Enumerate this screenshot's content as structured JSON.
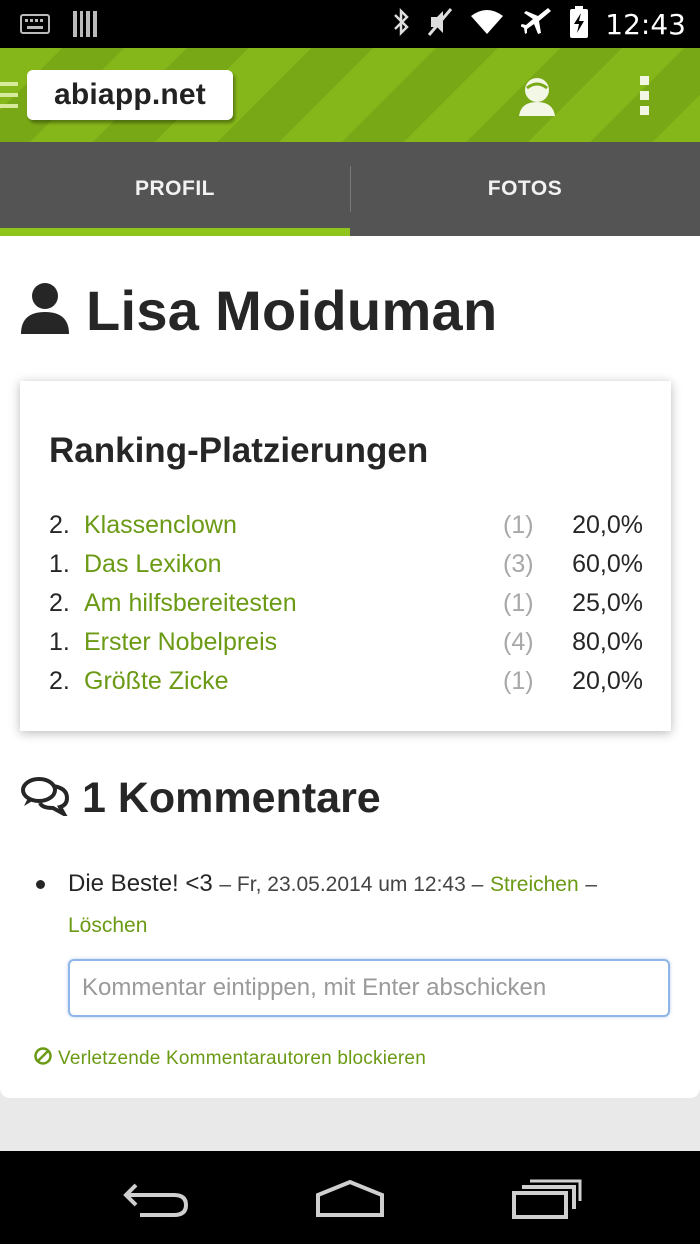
{
  "status_bar": {
    "time": "12:43",
    "left_icons": [
      "keyboard-icon",
      "barcode-icon"
    ],
    "right_icons": [
      "bluetooth-icon",
      "mute-icon",
      "wifi-icon",
      "airplane-icon",
      "battery-charging-icon"
    ]
  },
  "app_bar": {
    "logo": "abiapp.net",
    "icons": [
      "drawer-icon",
      "user-profile-icon",
      "overflow-menu-icon"
    ],
    "accent_color": "#86b71a"
  },
  "tabs": [
    {
      "label": "PROFIL",
      "active": true
    },
    {
      "label": "FOTOS",
      "active": false
    }
  ],
  "profile": {
    "name": "Lisa Moiduman"
  },
  "ranking": {
    "title": "Ranking-Platzierungen",
    "rows": [
      {
        "position": "2.",
        "title": "Klassenclown",
        "count": "(1)",
        "percent": "20,0%"
      },
      {
        "position": "1.",
        "title": "Das Lexikon",
        "count": "(3)",
        "percent": "60,0%"
      },
      {
        "position": "2.",
        "title": "Am hilfsbereitesten",
        "count": "(1)",
        "percent": "25,0%"
      },
      {
        "position": "1.",
        "title": "Erster Nobelpreis",
        "count": "(4)",
        "percent": "80,0%"
      },
      {
        "position": "2.",
        "title": "Größte Zicke",
        "count": "(1)",
        "percent": "20,0%"
      }
    ]
  },
  "comments": {
    "title": "1 Kommentare",
    "items": [
      {
        "text": "Die Beste! <3",
        "meta": "– Fr, 23.05.2014 um 12:43 –",
        "strike_label": "Streichen",
        "separator": "–",
        "delete_label": "Löschen"
      }
    ],
    "input_placeholder": "Kommentar eintippen, mit Enter abschicken",
    "block_label": "Verletzende Kommentarautoren blockieren"
  },
  "nav_bar": {
    "icons": [
      "back-icon",
      "home-icon",
      "recent-apps-icon"
    ]
  }
}
